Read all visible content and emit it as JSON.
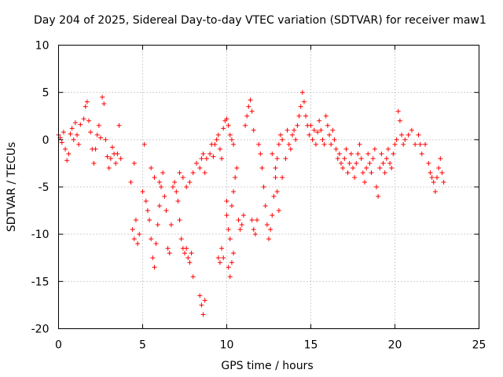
{
  "chart_data": {
    "type": "scatter",
    "title": "Day 204 of 2025, Sidereal Day-to-day VTEC variation (SDTVAR) for receiver maw1",
    "xlabel": "GPS time / hours",
    "ylabel": "SDTVAR / TECUs",
    "xlim": [
      0,
      25
    ],
    "ylim": [
      -20,
      10
    ],
    "xticks": [
      0,
      5,
      10,
      15,
      20,
      25
    ],
    "yticks": [
      -20,
      -15,
      -10,
      -5,
      0,
      5,
      10
    ],
    "xtick_labels": [
      "0",
      "5",
      "10",
      "15",
      "20",
      "25"
    ],
    "ytick_labels": [
      "-20",
      "-15",
      "-10",
      "-5",
      "0",
      "5",
      "10"
    ],
    "grid": true,
    "marker": "+",
    "marker_color": "#ff0000",
    "series": [
      {
        "name": "maw1",
        "points": [
          [
            0.0,
            0.5
          ],
          [
            0.1,
            0.2
          ],
          [
            0.2,
            -0.3
          ],
          [
            0.3,
            0.8
          ],
          [
            0.4,
            -1.0
          ],
          [
            0.5,
            -2.2
          ],
          [
            0.6,
            -1.5
          ],
          [
            0.7,
            0.6
          ],
          [
            0.8,
            1.2
          ],
          [
            0.9,
            0.0
          ],
          [
            1.0,
            1.8
          ],
          [
            1.1,
            0.5
          ],
          [
            1.2,
            -0.5
          ],
          [
            1.3,
            1.6
          ],
          [
            1.5,
            2.2
          ],
          [
            1.6,
            3.5
          ],
          [
            1.7,
            4.0
          ],
          [
            1.8,
            2.0
          ],
          [
            1.9,
            0.8
          ],
          [
            2.0,
            -1.0
          ],
          [
            2.1,
            -2.5
          ],
          [
            2.2,
            -1.0
          ],
          [
            2.3,
            0.5
          ],
          [
            2.4,
            1.5
          ],
          [
            2.5,
            0.2
          ],
          [
            2.6,
            4.5
          ],
          [
            2.7,
            3.8
          ],
          [
            2.8,
            0.0
          ],
          [
            2.9,
            -1.8
          ],
          [
            3.0,
            -3.0
          ],
          [
            3.1,
            -2.0
          ],
          [
            3.2,
            -0.8
          ],
          [
            3.3,
            -1.5
          ],
          [
            3.4,
            -2.5
          ],
          [
            3.5,
            -1.5
          ],
          [
            3.6,
            1.5
          ],
          [
            3.7,
            -2.0
          ],
          [
            4.5,
            -2.5
          ],
          [
            4.3,
            -4.5
          ],
          [
            4.4,
            -9.5
          ],
          [
            4.5,
            -10.5
          ],
          [
            4.6,
            -8.5
          ],
          [
            4.7,
            -11.0
          ],
          [
            4.8,
            -10.0
          ],
          [
            5.0,
            -5.5
          ],
          [
            5.1,
            -0.5
          ],
          [
            5.2,
            -6.5
          ],
          [
            5.3,
            -7.5
          ],
          [
            5.4,
            -8.5
          ],
          [
            5.5,
            -10.5
          ],
          [
            5.6,
            -12.5
          ],
          [
            5.7,
            -13.5
          ],
          [
            5.8,
            -11.0
          ],
          [
            5.9,
            -9.0
          ],
          [
            6.0,
            -7.0
          ],
          [
            6.1,
            -5.0
          ],
          [
            5.5,
            -3.0
          ],
          [
            5.7,
            -4.0
          ],
          [
            6.0,
            -4.5
          ],
          [
            6.2,
            -3.5
          ],
          [
            6.3,
            -6.0
          ],
          [
            6.4,
            -7.5
          ],
          [
            6.5,
            -11.5
          ],
          [
            6.6,
            -12.0
          ],
          [
            6.7,
            -9.0
          ],
          [
            6.8,
            -5.0
          ],
          [
            6.9,
            -4.5
          ],
          [
            7.0,
            -5.5
          ],
          [
            7.1,
            -6.5
          ],
          [
            7.2,
            -8.5
          ],
          [
            7.3,
            -10.5
          ],
          [
            7.4,
            -11.5
          ],
          [
            7.5,
            -12.0
          ],
          [
            7.6,
            -11.5
          ],
          [
            7.7,
            -12.5
          ],
          [
            7.8,
            -13.0
          ],
          [
            7.9,
            -12.0
          ],
          [
            8.0,
            -14.5
          ],
          [
            7.2,
            -3.5
          ],
          [
            7.4,
            -4.0
          ],
          [
            7.6,
            -5.0
          ],
          [
            7.8,
            -4.5
          ],
          [
            8.0,
            -3.5
          ],
          [
            8.2,
            -2.5
          ],
          [
            8.4,
            -3.0
          ],
          [
            8.5,
            -2.0
          ],
          [
            8.6,
            -1.5
          ],
          [
            8.7,
            -3.5
          ],
          [
            8.8,
            -2.0
          ],
          [
            8.4,
            -16.5
          ],
          [
            8.5,
            -17.5
          ],
          [
            8.6,
            -18.5
          ],
          [
            8.7,
            -17.0
          ],
          [
            9.0,
            -1.5
          ],
          [
            9.1,
            -0.5
          ],
          [
            9.2,
            -1.8
          ],
          [
            9.3,
            -0.5
          ],
          [
            9.4,
            0.0
          ],
          [
            9.5,
            0.5
          ],
          [
            9.6,
            -1.0
          ],
          [
            9.7,
            -2.0
          ],
          [
            9.8,
            1.2
          ],
          [
            9.9,
            2.0
          ],
          [
            10.0,
            2.2
          ],
          [
            10.1,
            1.5
          ],
          [
            10.2,
            0.5
          ],
          [
            10.3,
            0.0
          ],
          [
            10.4,
            -0.5
          ],
          [
            9.5,
            -12.5
          ],
          [
            9.6,
            -13.0
          ],
          [
            9.7,
            -11.5
          ],
          [
            9.8,
            -12.5
          ],
          [
            10.1,
            -13.5
          ],
          [
            10.2,
            -14.5
          ],
          [
            10.3,
            -13.0
          ],
          [
            10.4,
            -12.0
          ],
          [
            10.0,
            -6.5
          ],
          [
            10.0,
            -8.0
          ],
          [
            10.1,
            -9.5
          ],
          [
            10.2,
            -10.5
          ],
          [
            10.3,
            -7.0
          ],
          [
            10.4,
            -5.5
          ],
          [
            10.5,
            -4.0
          ],
          [
            10.6,
            -3.0
          ],
          [
            10.7,
            -8.5
          ],
          [
            10.8,
            -9.5
          ],
          [
            10.9,
            -9.0
          ],
          [
            11.0,
            -8.0
          ],
          [
            11.1,
            1.5
          ],
          [
            11.2,
            2.5
          ],
          [
            11.3,
            3.5
          ],
          [
            11.4,
            4.2
          ],
          [
            11.5,
            3.0
          ],
          [
            11.6,
            1.0
          ],
          [
            11.5,
            -8.5
          ],
          [
            11.6,
            -9.5
          ],
          [
            11.7,
            -10.0
          ],
          [
            11.8,
            -8.5
          ],
          [
            11.9,
            -0.5
          ],
          [
            12.0,
            -1.5
          ],
          [
            12.1,
            -3.0
          ],
          [
            12.2,
            -5.0
          ],
          [
            12.3,
            -7.0
          ],
          [
            12.4,
            -9.0
          ],
          [
            12.5,
            -10.5
          ],
          [
            12.6,
            -9.5
          ],
          [
            12.7,
            -8.0
          ],
          [
            12.8,
            -6.0
          ],
          [
            12.9,
            -4.0
          ],
          [
            13.0,
            -2.0
          ],
          [
            13.1,
            -0.5
          ],
          [
            13.2,
            0.5
          ],
          [
            13.3,
            0.0
          ],
          [
            12.7,
            -1.5
          ],
          [
            12.9,
            -3.0
          ],
          [
            13.0,
            -5.5
          ],
          [
            13.1,
            -7.5
          ],
          [
            13.3,
            -4.0
          ],
          [
            13.5,
            -2.0
          ],
          [
            13.6,
            1.0
          ],
          [
            13.7,
            -0.5
          ],
          [
            13.8,
            -1.0
          ],
          [
            13.9,
            0.5
          ],
          [
            14.0,
            1.0
          ],
          [
            14.1,
            0.0
          ],
          [
            14.2,
            1.5
          ],
          [
            14.3,
            2.5
          ],
          [
            14.4,
            3.5
          ],
          [
            14.5,
            5.0
          ],
          [
            14.6,
            4.0
          ],
          [
            14.7,
            2.5
          ],
          [
            14.8,
            1.5
          ],
          [
            14.9,
            0.5
          ],
          [
            15.0,
            1.5
          ],
          [
            15.1,
            0.0
          ],
          [
            15.2,
            1.0
          ],
          [
            15.3,
            -0.5
          ],
          [
            15.4,
            0.8
          ],
          [
            15.5,
            2.0
          ],
          [
            15.6,
            1.0
          ],
          [
            15.7,
            0.0
          ],
          [
            15.8,
            -0.5
          ],
          [
            15.9,
            2.5
          ],
          [
            16.0,
            1.5
          ],
          [
            16.1,
            0.5
          ],
          [
            16.2,
            -0.5
          ],
          [
            16.3,
            1.0
          ],
          [
            16.4,
            0.0
          ],
          [
            16.5,
            -1.0
          ],
          [
            16.6,
            -2.0
          ],
          [
            16.7,
            -1.5
          ],
          [
            16.8,
            -2.5
          ],
          [
            16.9,
            -3.0
          ],
          [
            17.0,
            -2.0
          ],
          [
            17.1,
            -1.0
          ],
          [
            17.2,
            -3.5
          ],
          [
            17.3,
            -2.5
          ],
          [
            17.4,
            -1.5
          ],
          [
            17.5,
            -3.0
          ],
          [
            17.6,
            -4.0
          ],
          [
            17.7,
            -2.5
          ],
          [
            17.8,
            -1.5
          ],
          [
            17.9,
            -0.5
          ],
          [
            18.0,
            -2.0
          ],
          [
            18.1,
            -3.5
          ],
          [
            18.2,
            -4.5
          ],
          [
            18.3,
            -3.0
          ],
          [
            18.4,
            -1.5
          ],
          [
            18.5,
            -2.5
          ],
          [
            18.6,
            -3.5
          ],
          [
            18.7,
            -2.0
          ],
          [
            18.8,
            -1.0
          ],
          [
            18.9,
            -5.0
          ],
          [
            19.0,
            -6.0
          ],
          [
            19.1,
            -3.0
          ],
          [
            19.2,
            -1.5
          ],
          [
            19.3,
            -2.5
          ],
          [
            19.4,
            -3.5
          ],
          [
            19.5,
            -2.0
          ],
          [
            19.6,
            -1.0
          ],
          [
            19.7,
            -2.5
          ],
          [
            19.8,
            -3.0
          ],
          [
            19.9,
            -1.5
          ],
          [
            20.0,
            -0.5
          ],
          [
            20.1,
            0.0
          ],
          [
            20.2,
            3.0
          ],
          [
            20.3,
            2.0
          ],
          [
            20.4,
            0.5
          ],
          [
            20.5,
            -0.5
          ],
          [
            20.6,
            0.0
          ],
          [
            20.8,
            0.5
          ],
          [
            21.0,
            1.0
          ],
          [
            21.2,
            -0.5
          ],
          [
            21.4,
            0.5
          ],
          [
            21.5,
            -0.5
          ],
          [
            21.6,
            -1.5
          ],
          [
            21.8,
            -0.5
          ],
          [
            22.0,
            -2.5
          ],
          [
            22.1,
            -3.5
          ],
          [
            22.2,
            -4.0
          ],
          [
            22.3,
            -4.5
          ],
          [
            22.4,
            -5.5
          ],
          [
            22.5,
            -4.0
          ],
          [
            22.6,
            -3.0
          ],
          [
            22.7,
            -2.0
          ],
          [
            22.8,
            -3.5
          ],
          [
            22.9,
            -4.5
          ]
        ]
      }
    ]
  }
}
